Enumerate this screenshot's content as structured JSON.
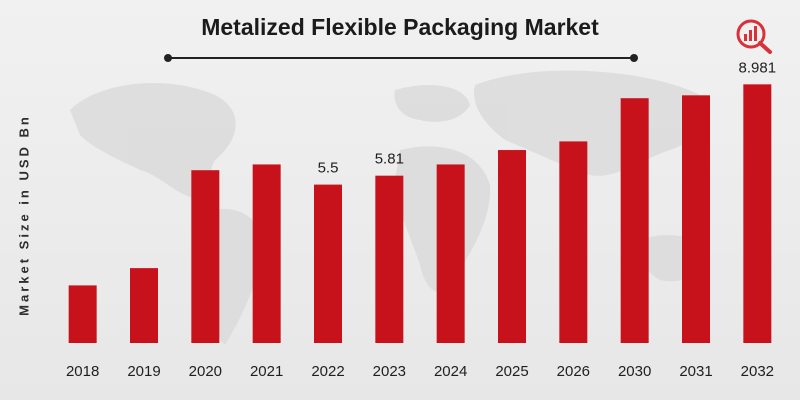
{
  "chart_data": {
    "type": "bar",
    "title": "Metalized Flexible Packaging Market",
    "xlabel": "",
    "ylabel": "Market Size in USD Bn",
    "categories": [
      "2018",
      "2019",
      "2020",
      "2021",
      "2022",
      "2023",
      "2024",
      "2025",
      "2026",
      "2030",
      "2031",
      "2032"
    ],
    "values": [
      2.0,
      2.6,
      6.0,
      6.2,
      5.5,
      5.81,
      6.2,
      6.7,
      7.0,
      8.5,
      8.6,
      8.981
    ],
    "data_labels": {
      "4": "5.5",
      "5": "5.81",
      "11": "8.981"
    },
    "ylim": [
      0,
      10
    ],
    "grid": false,
    "legend": "none",
    "bar_color": "#c8121b",
    "colors": {
      "background": "#ececec",
      "map": "#d9d9d9",
      "logo": "#d9303a",
      "text": "#1b1b1b"
    }
  }
}
